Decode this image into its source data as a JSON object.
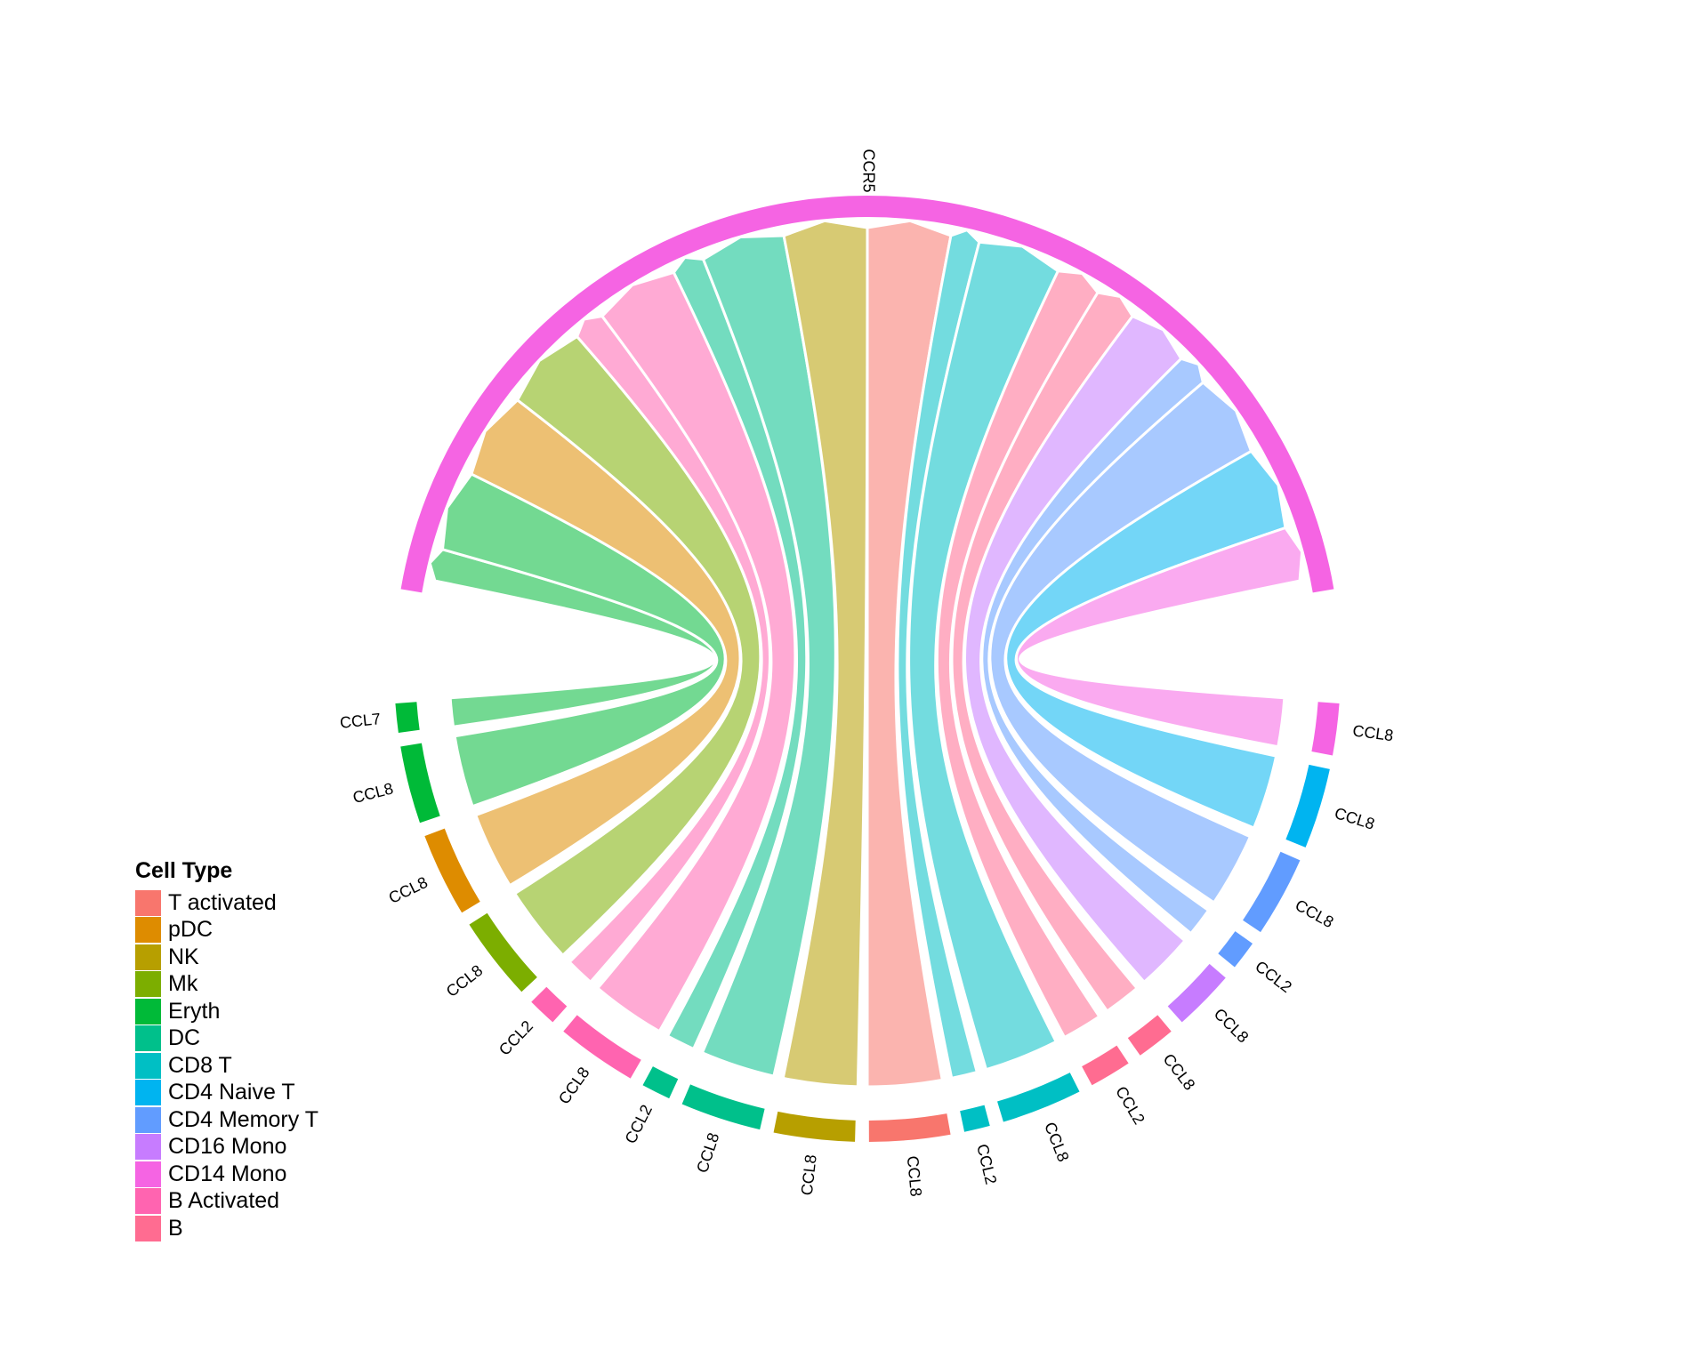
{
  "chart_data": {
    "type": "chord",
    "receptor": "CCR5",
    "receptor_cell_type": "CD14 Mono",
    "legend_title": "Cell Type",
    "legend_placement": "bottom-left",
    "cell_types": [
      {
        "name": "T activated",
        "color": "#F8766D"
      },
      {
        "name": "pDC",
        "color": "#DE8C00"
      },
      {
        "name": "NK",
        "color": "#B79F00"
      },
      {
        "name": "Mk",
        "color": "#7CAE00"
      },
      {
        "name": "Eryth",
        "color": "#00BA38"
      },
      {
        "name": "DC",
        "color": "#00C08B"
      },
      {
        "name": "CD8 T",
        "color": "#00BFC4"
      },
      {
        "name": "CD4 Naive T",
        "color": "#00B4F0"
      },
      {
        "name": "CD4 Memory T",
        "color": "#619CFF"
      },
      {
        "name": "CD16 Mono",
        "color": "#C77CFF"
      },
      {
        "name": "CD14 Mono",
        "color": "#F564E3"
      },
      {
        "name": "B Activated",
        "color": "#FF64B0"
      },
      {
        "name": "B",
        "color": "#FF6C91"
      }
    ],
    "links": [
      {
        "ligand": "CCL7",
        "cell_type": "Eryth",
        "weight": 1.0
      },
      {
        "ligand": "CCL8",
        "cell_type": "Eryth",
        "weight": 2.5
      },
      {
        "ligand": "CCL8",
        "cell_type": "pDC",
        "weight": 2.7
      },
      {
        "ligand": "CCL8",
        "cell_type": "Mk",
        "weight": 2.7
      },
      {
        "ligand": "CCL2",
        "cell_type": "B Activated",
        "weight": 1.0
      },
      {
        "ligand": "CCL8",
        "cell_type": "B Activated",
        "weight": 2.6
      },
      {
        "ligand": "CCL2",
        "cell_type": "DC",
        "weight": 1.0
      },
      {
        "ligand": "CCL8",
        "cell_type": "DC",
        "weight": 2.6
      },
      {
        "ligand": "CCL8",
        "cell_type": "NK",
        "weight": 2.6
      },
      {
        "ligand": "CCL8",
        "cell_type": "T activated",
        "weight": 2.6
      },
      {
        "ligand": "CCL2",
        "cell_type": "CD8 T",
        "weight": 0.9
      },
      {
        "ligand": "CCL8",
        "cell_type": "CD8 T",
        "weight": 2.6
      },
      {
        "ligand": "CCL2",
        "cell_type": "B",
        "weight": 1.4
      },
      {
        "ligand": "CCL8",
        "cell_type": "B",
        "weight": 1.3
      },
      {
        "ligand": "CCL8",
        "cell_type": "CD16 Mono",
        "weight": 2.0
      },
      {
        "ligand": "CCL2",
        "cell_type": "CD4 Memory T",
        "weight": 1.0
      },
      {
        "ligand": "CCL8",
        "cell_type": "CD4 Memory T",
        "weight": 2.6
      },
      {
        "ligand": "CCL8",
        "cell_type": "CD4 Naive T",
        "weight": 2.6
      },
      {
        "ligand": "CCL8",
        "cell_type": "CD14 Mono",
        "weight": 1.7
      }
    ]
  }
}
